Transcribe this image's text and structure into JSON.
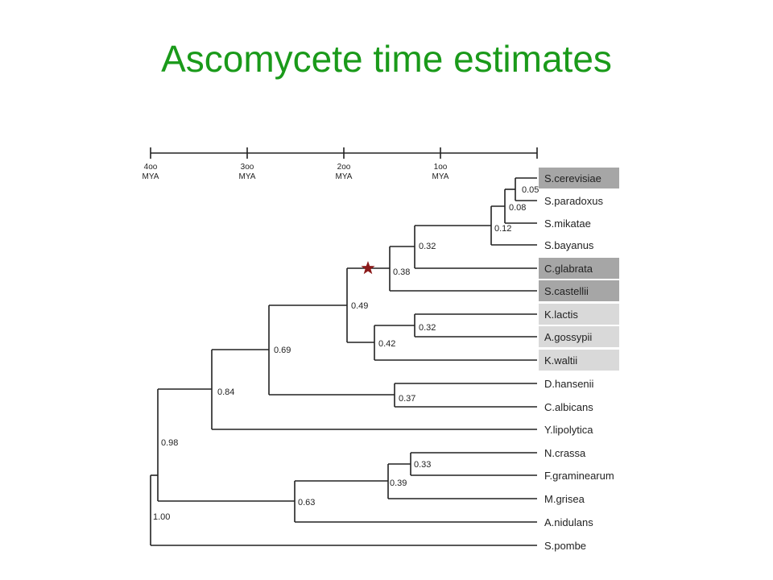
{
  "slide": {
    "title": "Ascomycete time estimates"
  },
  "scale_bar": {
    "ticks": [
      {
        "value": "4oo",
        "unit": "MYA"
      },
      {
        "value": "3oo",
        "unit": "MYA"
      },
      {
        "value": "2oo",
        "unit": "MYA"
      },
      {
        "value": "1oo",
        "unit": "MYA"
      }
    ]
  },
  "taxa": [
    {
      "name": "S.cerevisiae",
      "shade": "dark"
    },
    {
      "name": "S.paradoxus",
      "shade": "none"
    },
    {
      "name": "S.mikatae",
      "shade": "none"
    },
    {
      "name": "S.bayanus",
      "shade": "none"
    },
    {
      "name": "C.glabrata",
      "shade": "dark"
    },
    {
      "name": "S.castellii",
      "shade": "dark"
    },
    {
      "name": "K.lactis",
      "shade": "light"
    },
    {
      "name": "A.gossypii",
      "shade": "light"
    },
    {
      "name": "K.waltii",
      "shade": "light"
    },
    {
      "name": "D.hansenii",
      "shade": "none"
    },
    {
      "name": "C.albicans",
      "shade": "none"
    },
    {
      "name": "Y.lipolytica",
      "shade": "none"
    },
    {
      "name": "N.crassa",
      "shade": "none"
    },
    {
      "name": "F.graminearum",
      "shade": "none"
    },
    {
      "name": "M.grisea",
      "shade": "none"
    },
    {
      "name": "A.nidulans",
      "shade": "none"
    },
    {
      "name": "S.pombe",
      "shade": "none"
    }
  ],
  "node_labels": {
    "n005": "0.05",
    "n008": "0.08",
    "n012": "0.12",
    "n032a": "0.32",
    "n038": "0.38",
    "n049": "0.49",
    "n032b": "0.32",
    "n042": "0.42",
    "n069": "0.69",
    "n037": "0.37",
    "n084": "0.84",
    "n098": "0.98",
    "n033": "0.33",
    "n039": "0.39",
    "n063": "0.63",
    "n100": "1.00"
  },
  "colors": {
    "title": "#1a9a1a",
    "shade_dark": "#a6a6a6",
    "shade_light": "#d9d9d9",
    "star": "#8b1a1a"
  },
  "marker": {
    "icon": "star-icon"
  }
}
